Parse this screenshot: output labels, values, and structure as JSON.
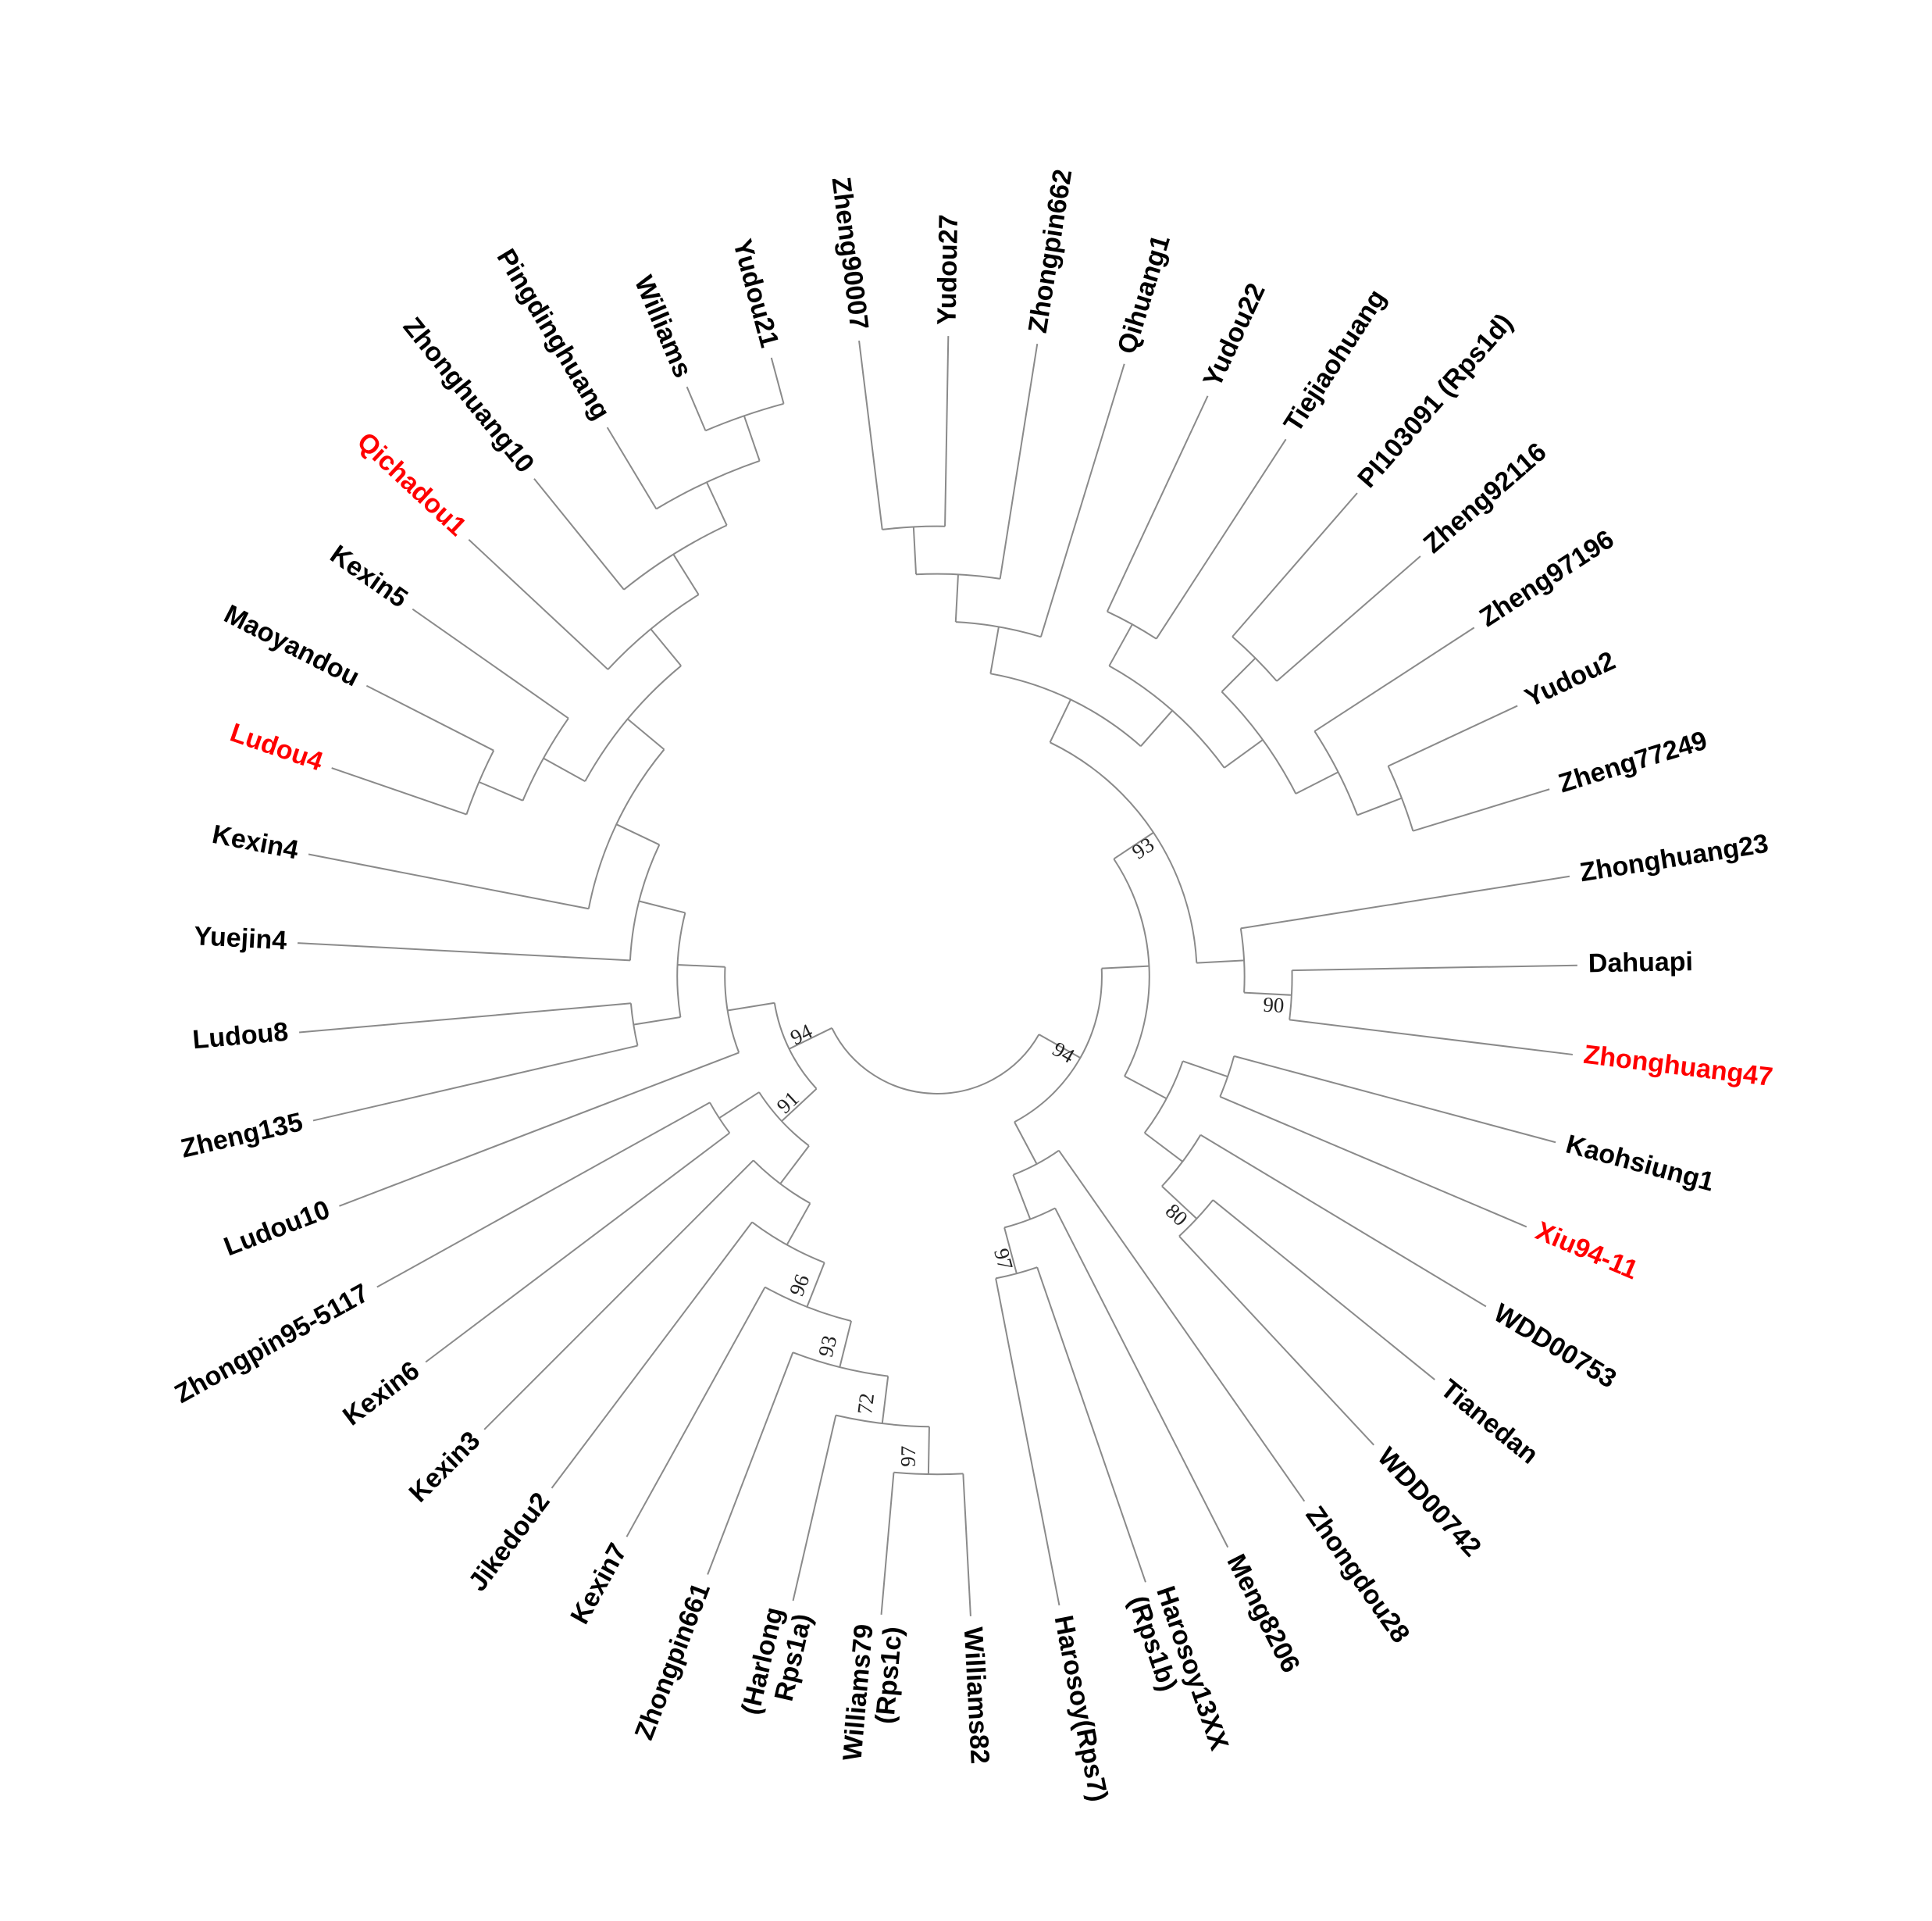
{
  "tree": {
    "children": [
      {
        "support": 94,
        "children": [
          {
            "children": [
              {
                "support": 93,
                "children": [
                  {
                    "children": [
                      {
                        "children": [
                          {
                            "children": [
                              {
                                "children": [
                                  {
                                    "label": "Zheng90007"
                                  },
                                  {
                                    "label": "Yudou27"
                                  }
                                ]
                              },
                              {
                                "label": "Zhongpin662"
                              }
                            ]
                          },
                          {
                            "label": "Qihuang1"
                          }
                        ]
                      },
                      {
                        "children": [
                          {
                            "children": [
                              {
                                "label": "Yudou22"
                              },
                              {
                                "label": "Tiejiaohuang"
                              }
                            ]
                          },
                          {
                            "children": [
                              {
                                "children": [
                                  {
                                    "label": "PI103091 (Rps1d)"
                                  },
                                  {
                                    "label": "Zheng92116"
                                  }
                                ]
                              },
                              {
                                "children": [
                                  {
                                    "label": "Zheng97196"
                                  },
                                  {
                                    "children": [
                                      {
                                        "label": "Yudou2"
                                      },
                                      {
                                        "label": "Zheng77249"
                                      }
                                    ]
                                  }
                                ]
                              }
                            ]
                          }
                        ]
                      }
                    ]
                  },
                  {
                    "children": [
                      {
                        "label": "Zhonghuang23"
                      },
                      {
                        "support": 90,
                        "children": [
                          {
                            "label": "Dahuapi"
                          },
                          {
                            "label": "Zhonghuang47",
                            "color": "#ff0000"
                          }
                        ]
                      }
                    ]
                  }
                ]
              },
              {
                "children": [
                  {
                    "children": [
                      {
                        "label": "Kaohsiung1"
                      },
                      {
                        "label": "Xiu94-11",
                        "color": "#ff0000"
                      }
                    ]
                  },
                  {
                    "children": [
                      {
                        "label": "WDD00753"
                      },
                      {
                        "support": 80,
                        "children": [
                          {
                            "label": "Tianedan"
                          },
                          {
                            "label": "WDD00742"
                          }
                        ]
                      }
                    ]
                  }
                ]
              }
            ]
          },
          {
            "children": [
              {
                "label": "Zhongdou28"
              },
              {
                "children": [
                  {
                    "label": "Meng8206"
                  },
                  {
                    "support": 97,
                    "children": [
                      {
                        "label": [
                          "Harosoy13XX",
                          "(Rps1b)"
                        ]
                      },
                      {
                        "label": "Harosoy(Rps7)"
                      }
                    ]
                  }
                ]
              }
            ]
          }
        ]
      },
      {
        "support": 94,
        "children": [
          {
            "support": 91,
            "children": [
              {
                "children": [
                  {
                    "children": [
                      {
                        "support": 96,
                        "children": [
                          {
                            "support": 93,
                            "children": [
                              {
                                "support": 72,
                                "children": [
                                  {
                                    "support": 97,
                                    "children": [
                                      {
                                        "label": "Williams82"
                                      },
                                      {
                                        "label": [
                                          "Williams79",
                                          "(Rps1c)"
                                        ]
                                      }
                                    ]
                                  },
                                  {
                                    "label": [
                                      "(Harlong",
                                      "Rps1a)"
                                    ]
                                  }
                                ]
                              },
                              {
                                "label": "Zhongpin661"
                              }
                            ]
                          },
                          {
                            "label": "Kexin7"
                          }
                        ]
                      },
                      {
                        "label": "Jikedou2"
                      }
                    ]
                  },
                  {
                    "label": "Kexin3"
                  }
                ]
              },
              {
                "children": [
                  {
                    "label": "Kexin6"
                  },
                  {
                    "label": "Zhongpin95-5117"
                  }
                ]
              }
            ]
          },
          {
            "children": [
              {
                "label": "Ludou10"
              },
              {
                "children": [
                  {
                    "children": [
                      {
                        "label": "Zheng135"
                      },
                      {
                        "label": "Ludou8"
                      }
                    ]
                  },
                  {
                    "children": [
                      {
                        "label": "Yuejin4"
                      },
                      {
                        "children": [
                          {
                            "label": "Kexin4"
                          },
                          {
                            "children": [
                              {
                                "children": [
                                  {
                                    "children": [
                                      {
                                        "label": "Ludou4",
                                        "color": "#ff0000"
                                      },
                                      {
                                        "label": "Maoyandou"
                                      }
                                    ]
                                  },
                                  {
                                    "label": "Kexin5"
                                  }
                                ]
                              },
                              {
                                "children": [
                                  {
                                    "label": "Qichadou1",
                                    "color": "#ff0000"
                                  },
                                  {
                                    "children": [
                                      {
                                        "label": "Zhonghuang10"
                                      },
                                      {
                                        "children": [
                                          {
                                            "label": "Pingdinghuang"
                                          },
                                          {
                                            "children": [
                                              {
                                                "label": "Williams"
                                              },
                                              {
                                                "label": "Yudou21"
                                              }
                                            ]
                                          }
                                        ]
                                      }
                                    ]
                                  }
                                ]
                              }
                            ]
                          }
                        ]
                      }
                    ]
                  }
                ]
              }
            ]
          }
        ]
      }
    ]
  }
}
